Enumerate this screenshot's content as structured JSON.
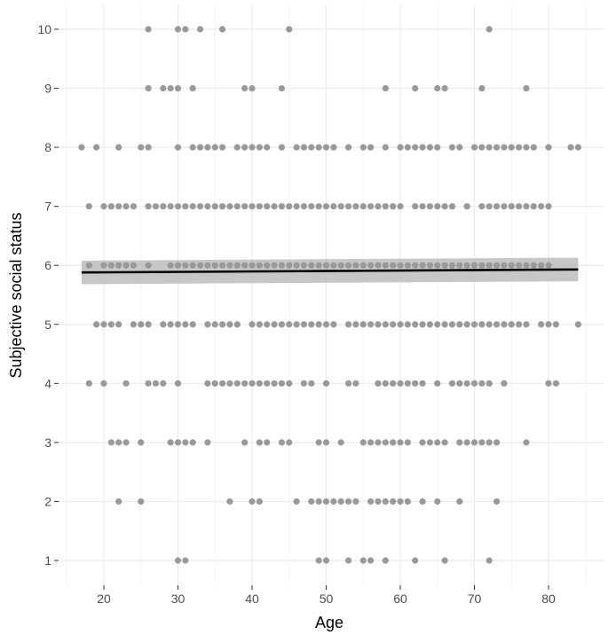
{
  "chart_data": {
    "type": "scatter",
    "title": "",
    "xlabel": "Age",
    "ylabel": "Subjective social status",
    "xlim": [
      15,
      85
    ],
    "ylim": [
      0.5,
      10.5
    ],
    "x_ticks": [
      20,
      30,
      40,
      50,
      60,
      70,
      80
    ],
    "y_ticks": [
      1,
      2,
      3,
      4,
      5,
      6,
      7,
      8,
      9,
      10
    ],
    "grid": true,
    "legend": "none",
    "colors": {
      "points": "#999999",
      "fit_line": "#000000",
      "confidence_band": "#bdbdbd",
      "grid": "#ebebeb",
      "background": "#ffffff"
    },
    "series": [
      {
        "rows": [
          {
            "y": 10,
            "x": [
              26,
              30,
              31,
              33,
              36,
              45,
              72
            ]
          },
          {
            "y": 9,
            "x": [
              26,
              28,
              29,
              30,
              32,
              39,
              40,
              44,
              58,
              62,
              65,
              66,
              71,
              77
            ]
          },
          {
            "y": 8,
            "x": [
              17,
              19,
              22,
              25,
              26,
              30,
              32,
              33,
              34,
              35,
              36,
              38,
              39,
              40,
              41,
              42,
              44,
              46,
              47,
              48,
              49,
              50,
              51,
              53,
              55,
              56,
              58,
              60,
              61,
              62,
              63,
              64,
              65,
              67,
              68,
              70,
              71,
              72,
              73,
              74,
              75,
              76,
              77,
              78,
              80,
              83,
              84
            ]
          },
          {
            "y": 7,
            "x": [
              18,
              20,
              21,
              22,
              23,
              24,
              26,
              27,
              28,
              29,
              30,
              31,
              32,
              33,
              34,
              35,
              36,
              37,
              38,
              39,
              40,
              41,
              42,
              43,
              44,
              45,
              46,
              47,
              48,
              49,
              50,
              51,
              52,
              53,
              54,
              55,
              56,
              57,
              58,
              59,
              60,
              62,
              63,
              64,
              65,
              66,
              67,
              69,
              71,
              72,
              73,
              74,
              75,
              76,
              77,
              78,
              79,
              80
            ]
          },
          {
            "y": 6,
            "x": [
              18,
              20,
              21,
              22,
              23,
              24,
              26,
              29,
              30,
              31,
              32,
              33,
              34,
              35,
              36,
              37,
              38,
              39,
              40,
              41,
              42,
              43,
              44,
              45,
              46,
              47,
              48,
              49,
              50,
              51,
              52,
              53,
              54,
              55,
              56,
              57,
              58,
              59,
              60,
              61,
              62,
              63,
              64,
              65,
              66,
              67,
              68,
              69,
              70,
              71,
              72,
              73,
              74,
              75,
              76,
              77,
              78,
              79,
              80
            ]
          },
          {
            "y": 5,
            "x": [
              19,
              20,
              21,
              22,
              24,
              25,
              26,
              28,
              29,
              30,
              31,
              32,
              34,
              35,
              36,
              37,
              38,
              40,
              41,
              42,
              43,
              44,
              45,
              46,
              47,
              48,
              49,
              50,
              51,
              53,
              54,
              55,
              56,
              57,
              58,
              59,
              60,
              61,
              62,
              63,
              64,
              65,
              66,
              67,
              68,
              69,
              70,
              71,
              72,
              73,
              74,
              75,
              76,
              77,
              79,
              80,
              81,
              84
            ]
          },
          {
            "y": 4,
            "x": [
              18,
              20,
              23,
              26,
              27,
              28,
              30,
              34,
              35,
              36,
              37,
              38,
              39,
              40,
              41,
              42,
              43,
              44,
              45,
              47,
              48,
              50,
              53,
              54,
              57,
              58,
              59,
              60,
              61,
              62,
              63,
              65,
              67,
              68,
              69,
              70,
              71,
              72,
              74,
              80,
              81
            ]
          },
          {
            "y": 3,
            "x": [
              21,
              22,
              23,
              25,
              29,
              30,
              31,
              32,
              34,
              39,
              41,
              42,
              44,
              45,
              49,
              50,
              52,
              55,
              56,
              57,
              58,
              59,
              60,
              61,
              63,
              64,
              65,
              66,
              68,
              69,
              70,
              71,
              72,
              73,
              77
            ]
          },
          {
            "y": 2,
            "x": [
              22,
              25,
              37,
              40,
              41,
              46,
              48,
              49,
              50,
              51,
              52,
              53,
              54,
              56,
              57,
              58,
              59,
              60,
              61,
              63,
              65,
              68,
              73
            ]
          },
          {
            "y": 1,
            "x": [
              30,
              31,
              49,
              50,
              53,
              55,
              56,
              58,
              62,
              66,
              72
            ]
          }
        ]
      }
    ],
    "fit": {
      "type": "linear",
      "x": [
        17,
        84
      ],
      "y": [
        5.88,
        5.93
      ],
      "ci_lower": [
        5.68,
        5.73
      ],
      "ci_upper": [
        6.08,
        6.13
      ]
    }
  }
}
